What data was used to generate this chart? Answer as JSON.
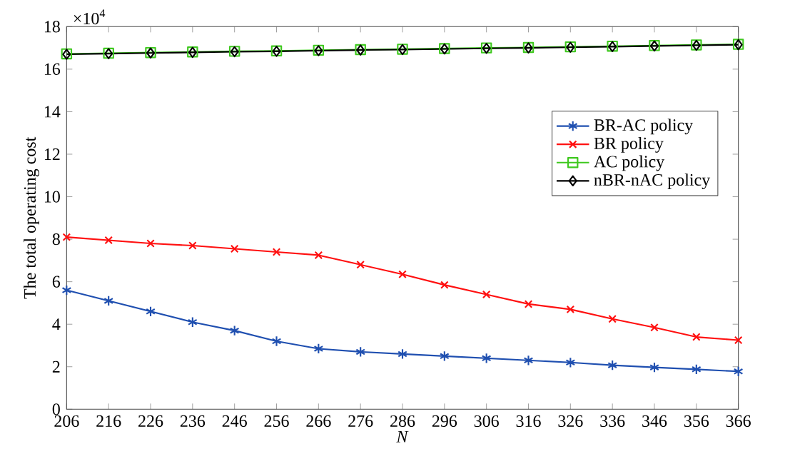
{
  "chart_data": {
    "type": "line",
    "xlabel": "*N*",
    "ylabel": "The total operating cost",
    "annotations": [
      "×10$^{4}$"
    ],
    "x": [
      206,
      216,
      226,
      236,
      246,
      256,
      266,
      276,
      286,
      296,
      306,
      316,
      326,
      336,
      346,
      356,
      366
    ],
    "xlim": [
      206,
      366
    ],
    "xticks": [
      206,
      216,
      226,
      236,
      246,
      256,
      266,
      276,
      286,
      296,
      306,
      316,
      326,
      336,
      346,
      356,
      366
    ],
    "ylim": [
      0,
      18
    ],
    "yticks": [
      0,
      2,
      4,
      6,
      8,
      10,
      12,
      14,
      16,
      18
    ],
    "grid": false,
    "legend": "top right",
    "line_style": "solid",
    "series": [
      {
        "name": "BR-AC policy",
        "color": "#1f4fb0",
        "marker": "cross",
        "values": [
          5.6,
          5.1,
          4.6,
          4.1,
          3.7,
          3.2,
          2.85,
          2.7,
          2.6,
          2.5,
          2.4,
          2.3,
          2.2,
          2.07,
          1.97,
          1.88,
          1.78
        ]
      },
      {
        "name": "BR policy",
        "color": "#ff1010",
        "marker": "cross",
        "values": [
          8.1,
          7.95,
          7.8,
          7.7,
          7.55,
          7.4,
          7.25,
          6.8,
          6.35,
          5.85,
          5.4,
          4.95,
          4.7,
          4.25,
          3.85,
          3.4,
          3.25
        ]
      },
      {
        "name": "AC policy",
        "color": "#3ec81e",
        "marker": "square",
        "values": [
          16.72,
          16.75,
          16.78,
          16.81,
          16.84,
          16.86,
          16.89,
          16.92,
          16.94,
          16.97,
          17.0,
          17.02,
          17.05,
          17.08,
          17.11,
          17.14,
          17.17
        ]
      },
      {
        "name": "nBR-nAC policy",
        "color": "#000000",
        "marker": "diamond",
        "values": [
          16.7,
          16.73,
          16.76,
          16.79,
          16.82,
          16.84,
          16.87,
          16.9,
          16.92,
          16.95,
          16.98,
          17.0,
          17.03,
          17.06,
          17.09,
          17.12,
          17.15
        ]
      }
    ]
  }
}
